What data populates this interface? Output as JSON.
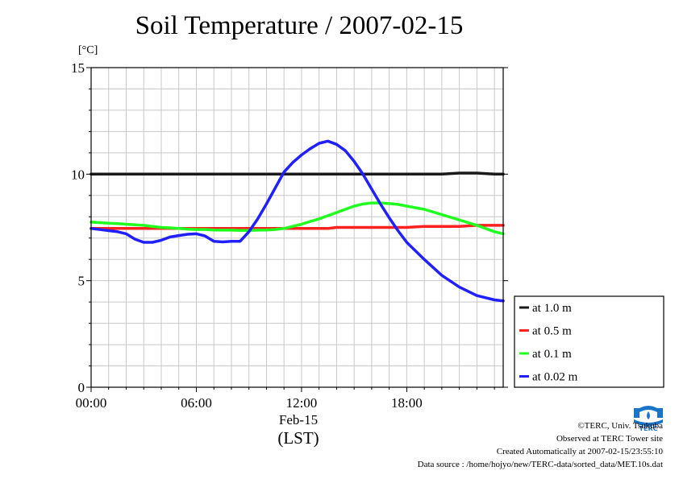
{
  "title": "Soil Temperature / 2007-02-15",
  "unit_label": "[°C]",
  "date_label": "Feb-15",
  "x_unit_label": "(LST)",
  "credits": [
    "©TERC, Univ. Tsukuba",
    "Observed at TERC Tower site",
    "Created Automatically at 2007-02-15/23:55:10",
    "Data source : /home/hojyo/new/TERC-data/sorted_data/MET.10s.dat"
  ],
  "logo_text": "TERC",
  "chart_data": {
    "type": "line",
    "title": "Soil Temperature / 2007-02-15",
    "xlabel": "(LST)",
    "ylabel": "[°C]",
    "ylim": [
      0,
      15
    ],
    "xlim_hours": [
      0,
      23.5
    ],
    "x_ticks": [
      {
        "hour": 0,
        "label": "00:00"
      },
      {
        "hour": 6,
        "label": "06:00"
      },
      {
        "hour": 12,
        "label": "12:00"
      },
      {
        "hour": 18,
        "label": "18:00"
      }
    ],
    "y_ticks": [
      0,
      5,
      10,
      15
    ],
    "grid": true,
    "legend_position": "right, outside lower",
    "x_hours": [
      0,
      1,
      1.5,
      2,
      2.5,
      3,
      3.5,
      4,
      4.5,
      5,
      5.5,
      6,
      6.5,
      7,
      7.5,
      8,
      8.5,
      9,
      9.5,
      10,
      10.5,
      11,
      11.5,
      12,
      12.5,
      13,
      13.5,
      14,
      14.5,
      15,
      15.5,
      16,
      16.5,
      17,
      17.5,
      18,
      19,
      20,
      21,
      22,
      23,
      23.5
    ],
    "series": [
      {
        "name": "at 1.0 m",
        "color": "#1a1a1a",
        "values": [
          10.0,
          10.0,
          10.0,
          10.0,
          10.0,
          10.0,
          10.0,
          10.0,
          10.0,
          10.0,
          10.0,
          10.0,
          10.0,
          10.0,
          10.0,
          10.0,
          10.0,
          10.0,
          10.0,
          10.0,
          10.0,
          10.0,
          10.0,
          10.0,
          10.0,
          10.0,
          10.0,
          10.0,
          10.0,
          10.0,
          10.0,
          10.0,
          10.0,
          10.0,
          10.0,
          10.0,
          10.0,
          10.0,
          10.05,
          10.05,
          10.0,
          10.0
        ]
      },
      {
        "name": "at 0.5 m",
        "color": "#ff2020",
        "values": [
          7.45,
          7.45,
          7.45,
          7.45,
          7.45,
          7.45,
          7.45,
          7.45,
          7.45,
          7.45,
          7.45,
          7.45,
          7.45,
          7.45,
          7.45,
          7.45,
          7.45,
          7.45,
          7.45,
          7.45,
          7.45,
          7.45,
          7.45,
          7.45,
          7.45,
          7.45,
          7.45,
          7.5,
          7.5,
          7.5,
          7.5,
          7.5,
          7.5,
          7.5,
          7.5,
          7.5,
          7.55,
          7.55,
          7.55,
          7.6,
          7.6,
          7.6
        ]
      },
      {
        "name": "at 0.1 m",
        "color": "#20ff20",
        "values": [
          7.75,
          7.7,
          7.68,
          7.65,
          7.62,
          7.6,
          7.55,
          7.5,
          7.48,
          7.45,
          7.42,
          7.4,
          7.4,
          7.38,
          7.37,
          7.37,
          7.36,
          7.36,
          7.37,
          7.38,
          7.4,
          7.45,
          7.55,
          7.65,
          7.78,
          7.9,
          8.05,
          8.2,
          8.35,
          8.5,
          8.6,
          8.65,
          8.65,
          8.62,
          8.58,
          8.5,
          8.35,
          8.1,
          7.85,
          7.6,
          7.3,
          7.2
        ]
      },
      {
        "name": "at 0.02 m",
        "color": "#2020ff",
        "values": [
          7.45,
          7.35,
          7.3,
          7.2,
          6.95,
          6.8,
          6.8,
          6.9,
          7.05,
          7.12,
          7.18,
          7.2,
          7.1,
          6.85,
          6.82,
          6.85,
          6.85,
          7.3,
          7.9,
          8.6,
          9.35,
          10.1,
          10.55,
          10.9,
          11.2,
          11.45,
          11.55,
          11.4,
          11.1,
          10.6,
          10.0,
          9.3,
          8.6,
          7.95,
          7.35,
          6.8,
          6.0,
          5.25,
          4.7,
          4.3,
          4.1,
          4.05
        ]
      }
    ]
  }
}
